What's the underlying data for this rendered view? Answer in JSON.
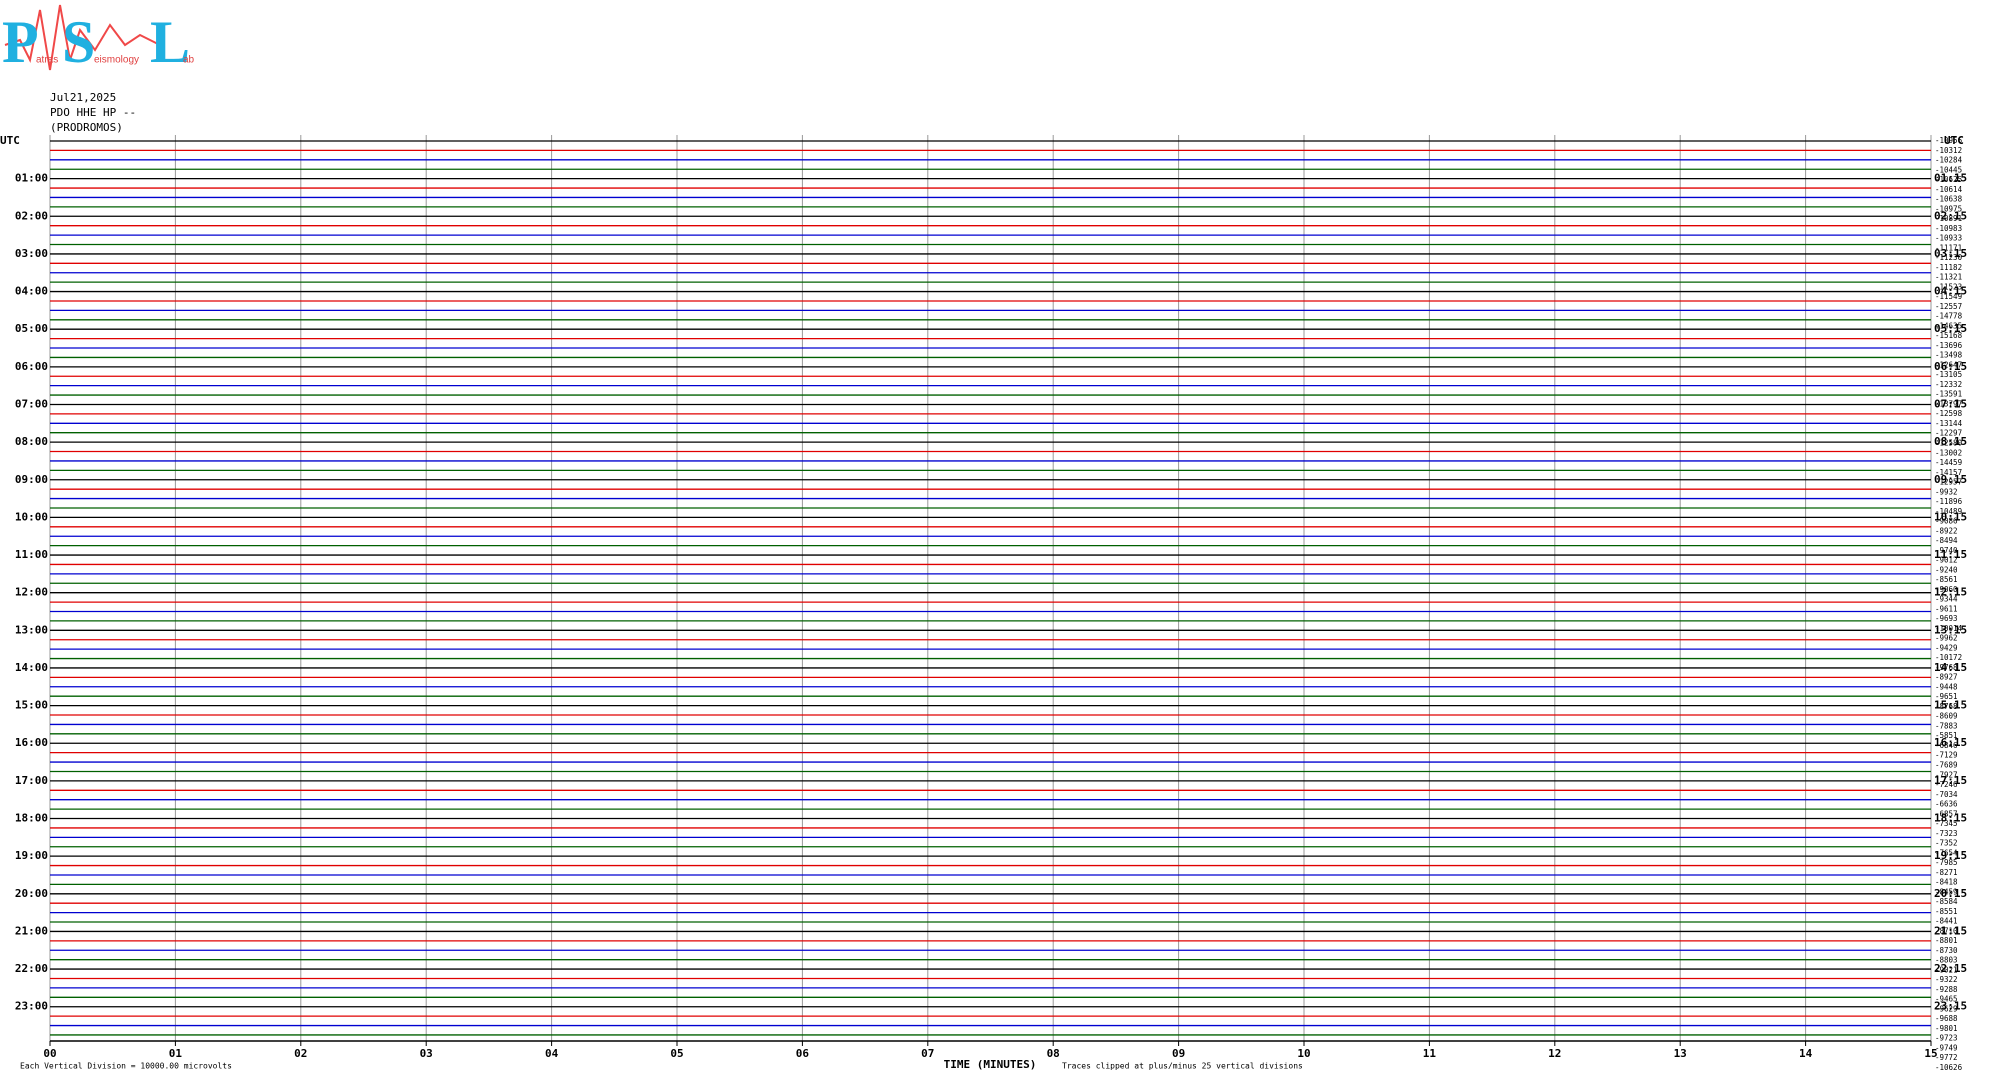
{
  "header": {
    "logo_letters": [
      "P",
      "S",
      "L"
    ],
    "logo_words": [
      "atras",
      "eismology",
      "ab"
    ],
    "date": "Jul21,2025",
    "station": "PDO HHE HP --",
    "site": "(PRODROMOS)"
  },
  "chart_data": {
    "type": "helicorder",
    "left_labels": [
      "UTC",
      null,
      null,
      null,
      "01:00",
      null,
      null,
      null,
      "02:00",
      null,
      null,
      null,
      "03:00",
      null,
      null,
      null,
      "04:00",
      null,
      null,
      null,
      "05:00",
      null,
      null,
      null,
      "06:00",
      null,
      null,
      null,
      "07:00",
      null,
      null,
      null,
      "08:00",
      null,
      null,
      null,
      "09:00",
      null,
      null,
      null,
      "10:00",
      null,
      null,
      null,
      "11:00",
      null,
      null,
      null,
      "12:00",
      null,
      null,
      null,
      "13:00",
      null,
      null,
      null,
      "14:00",
      null,
      null,
      null,
      "15:00",
      null,
      null,
      null,
      "16:00",
      null,
      null,
      null,
      "17:00",
      null,
      null,
      null,
      "18:00",
      null,
      null,
      null,
      "19:00",
      null,
      null,
      null,
      "20:00",
      null,
      null,
      null,
      "21:00",
      null,
      null,
      null,
      "22:00",
      null,
      null,
      null,
      "23:00",
      null,
      null,
      null
    ],
    "right_labels": [
      "UTC",
      null,
      null,
      null,
      "01:15",
      null,
      null,
      null,
      "02:15",
      null,
      null,
      null,
      "03:15",
      null,
      null,
      null,
      "04:15",
      null,
      null,
      null,
      "05:15",
      null,
      null,
      null,
      "06:15",
      null,
      null,
      null,
      "07:15",
      null,
      null,
      null,
      "08:15",
      null,
      null,
      null,
      "09:15",
      null,
      null,
      null,
      "10:15",
      null,
      null,
      null,
      "11:15",
      null,
      null,
      null,
      "12:15",
      null,
      null,
      null,
      "13:15",
      null,
      null,
      null,
      "14:15",
      null,
      null,
      null,
      "15:15",
      null,
      null,
      null,
      "16:15",
      null,
      null,
      null,
      "17:15",
      null,
      null,
      null,
      "18:15",
      null,
      null,
      null,
      "19:15",
      null,
      null,
      null,
      "20:15",
      null,
      null,
      null,
      "21:15",
      null,
      null,
      null,
      "22:15",
      null,
      null,
      null,
      "23:15",
      null,
      null,
      null
    ],
    "offsets": [
      -10956,
      -10312,
      -10284,
      -10445,
      -10625,
      -10614,
      -10638,
      -10975,
      -10891,
      -10983,
      -10933,
      -11171,
      -11230,
      -11182,
      -11321,
      -11523,
      -11549,
      -12557,
      -14778,
      -14635,
      -15168,
      -13696,
      -13498,
      -12647,
      -13105,
      -12332,
      -13591,
      -13797,
      -12598,
      -13144,
      -12297,
      -12580,
      -13002,
      -14459,
      -14157,
      -12957,
      -9932,
      -11896,
      -10489,
      -9086,
      -8922,
      -8494,
      -9740,
      -9012,
      -9240,
      -8561,
      -9060,
      -9344,
      -9611,
      -9693,
      -10014,
      -9962,
      -9429,
      -10172,
      -9768,
      -8927,
      -9448,
      -9651,
      -8768,
      -8609,
      -7883,
      -5851,
      -6846,
      -7129,
      -7689,
      -7927,
      -7246,
      -7034,
      -6636,
      -6857,
      -7345,
      -7323,
      -7352,
      -7654,
      -7985,
      -8271,
      -8418,
      -8459,
      -8584,
      -8551,
      -8441,
      -8710,
      -8801,
      -8730,
      -8803,
      -9021,
      -9322,
      -9288,
      -9465,
      -9629,
      -9688,
      -9801,
      -9723,
      -9749,
      -9772,
      -10626
    ],
    "trace_colors": [
      "#000000",
      "#e00000",
      "#0000d0",
      "#006000"
    ],
    "xlim": [
      0,
      15
    ],
    "xticks": [
      {
        "value": 0,
        "label": "00"
      },
      {
        "value": 1,
        "label": "01"
      },
      {
        "value": 2,
        "label": "02"
      },
      {
        "value": 3,
        "label": "03"
      },
      {
        "value": 4,
        "label": "04"
      },
      {
        "value": 5,
        "label": "05"
      },
      {
        "value": 6,
        "label": "06"
      },
      {
        "value": 7,
        "label": "07"
      },
      {
        "value": 8,
        "label": "08"
      },
      {
        "value": 9,
        "label": "09"
      },
      {
        "value": 10,
        "label": "10"
      },
      {
        "value": 11,
        "label": "11"
      },
      {
        "value": 12,
        "label": "12"
      },
      {
        "value": 13,
        "label": "13"
      },
      {
        "value": 14,
        "label": "14"
      },
      {
        "value": 15,
        "label": "15"
      }
    ],
    "x_label": "TIME (MINUTES)",
    "clip_note": "Traces clipped at plus/minus 25 vertical divisions",
    "scale_note": "Each Vertical Division = 10000.00 microvolts",
    "grid": true
  }
}
